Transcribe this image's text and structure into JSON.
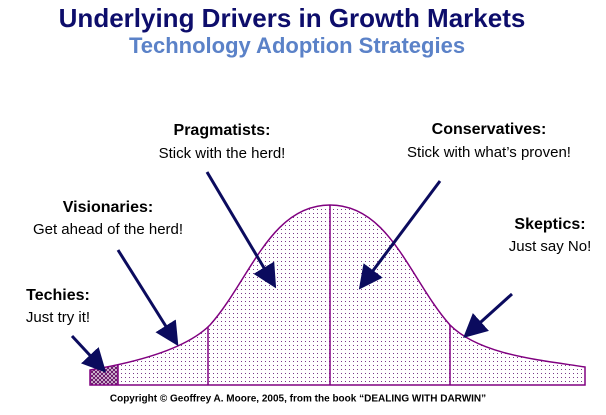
{
  "header": {
    "title": "Underlying Drivers in Growth Markets",
    "subtitle": "Technology Adoption Strategies"
  },
  "segments": [
    {
      "name": "Techies:",
      "tagline": "Just try it!"
    },
    {
      "name": "Visionaries:",
      "tagline": "Get ahead of the herd!"
    },
    {
      "name": "Pragmatists:",
      "tagline": "Stick with the herd!"
    },
    {
      "name": "Conservatives:",
      "tagline": "Stick with what’s proven!"
    },
    {
      "name": "Skeptics:",
      "tagline": "Just say No!"
    }
  ],
  "copyright": "Copyright © Geoffrey A. Moore, 2005, from the book “DEALING WITH DARWIN”"
}
